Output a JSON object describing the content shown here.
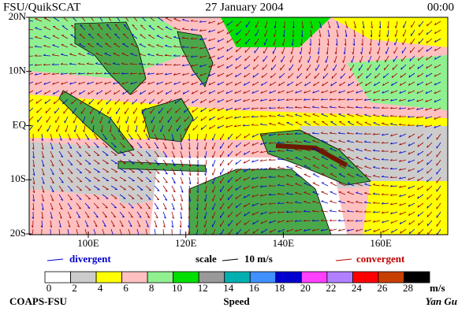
{
  "header": {
    "left": "FSU/QuikSCAT",
    "date": "27 January 2004",
    "time": "00:00"
  },
  "map": {
    "lat_labels": [
      "20N",
      "10N",
      "EQ",
      "10S",
      "20S"
    ],
    "lon_labels": [
      "100E",
      "120E",
      "140E",
      "160E"
    ]
  },
  "legend": {
    "divergent": "divergent",
    "scale": "scale",
    "scale_value": "10 m/s",
    "convergent": "convergent"
  },
  "colorbar": {
    "ticks": [
      0,
      2,
      4,
      6,
      8,
      10,
      12,
      14,
      16,
      18,
      20,
      22,
      24,
      26,
      28
    ],
    "unit": "m/s",
    "label": "Speed",
    "colors": [
      "#ffffff",
      "#cccccc",
      "#ffff00",
      "#ffc0c0",
      "#90f090",
      "#00e000",
      "#999999",
      "#00b0b0",
      "#4090ff",
      "#0000d0",
      "#ff40ff",
      "#b080ff",
      "#ff0000",
      "#c84000",
      "#000000"
    ]
  },
  "footer": {
    "left": "COAPS-FSU",
    "right": "Yan Gu"
  }
}
